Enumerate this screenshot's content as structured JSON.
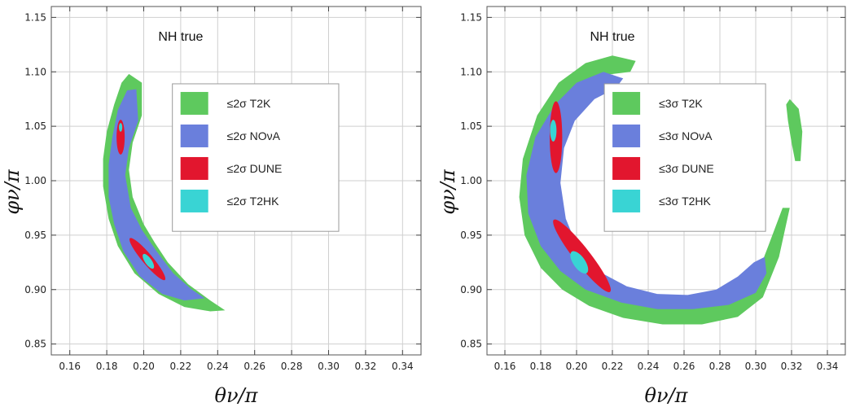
{
  "chart_data": [
    {
      "type": "area",
      "annotation": "NH true",
      "xlabel": "θν/π",
      "ylabel": "φν/π",
      "xlim": [
        0.15,
        0.35
      ],
      "ylim": [
        0.84,
        1.16
      ],
      "xticks": [
        "0.16",
        "0.18",
        "0.20",
        "0.22",
        "0.24",
        "0.26",
        "0.28",
        "0.30",
        "0.32",
        "0.34"
      ],
      "yticks": [
        "0.85",
        "0.90",
        "0.95",
        "1.00",
        "1.05",
        "1.10",
        "1.15"
      ],
      "grid": true,
      "legend_position": "upper-right",
      "series": [
        {
          "name": "≤2σ T2K",
          "color": "#5ec95e",
          "regions": [
            [
              [
                0.192,
                1.098
              ],
              [
                0.199,
                1.09
              ],
              [
                0.199,
                1.06
              ],
              [
                0.194,
                1.035
              ],
              [
                0.192,
                1.01
              ],
              [
                0.194,
                0.985
              ],
              [
                0.2,
                0.96
              ],
              [
                0.206,
                0.943
              ],
              [
                0.213,
                0.925
              ],
              [
                0.224,
                0.905
              ],
              [
                0.236,
                0.89
              ],
              [
                0.244,
                0.881
              ],
              [
                0.236,
                0.88
              ],
              [
                0.222,
                0.884
              ],
              [
                0.208,
                0.896
              ],
              [
                0.195,
                0.915
              ],
              [
                0.186,
                0.94
              ],
              [
                0.181,
                0.965
              ],
              [
                0.178,
                0.995
              ],
              [
                0.178,
                1.02
              ],
              [
                0.18,
                1.045
              ],
              [
                0.184,
                1.07
              ],
              [
                0.188,
                1.09
              ]
            ]
          ]
        },
        {
          "name": "≤2σ NOνA",
          "color": "#6a7fdc",
          "regions": [
            [
              [
                0.191,
                1.083
              ],
              [
                0.196,
                1.084
              ],
              [
                0.197,
                1.055
              ],
              [
                0.192,
                1.03
              ],
              [
                0.19,
                1.005
              ],
              [
                0.193,
                0.975
              ],
              [
                0.199,
                0.955
              ],
              [
                0.207,
                0.935
              ],
              [
                0.216,
                0.915
              ],
              [
                0.226,
                0.9
              ],
              [
                0.233,
                0.892
              ],
              [
                0.222,
                0.89
              ],
              [
                0.21,
                0.896
              ],
              [
                0.198,
                0.912
              ],
              [
                0.189,
                0.935
              ],
              [
                0.184,
                0.96
              ],
              [
                0.181,
                0.985
              ],
              [
                0.181,
                1.015
              ],
              [
                0.183,
                1.04
              ],
              [
                0.186,
                1.065
              ]
            ]
          ]
        },
        {
          "name": "≤2σ DUNE",
          "color": "#e2162e",
          "ellipses": [
            {
              "cx": 0.1875,
              "cy": 1.04,
              "rx": 0.0022,
              "ry": 0.016,
              "rot": 0
            },
            {
              "cx": 0.202,
              "cy": 0.928,
              "rx": 0.0028,
              "ry": 0.025,
              "rot": -40
            }
          ]
        },
        {
          "name": "≤2σ T2HK",
          "color": "#39d4d4",
          "ellipses": [
            {
              "cx": 0.1875,
              "cy": 1.049,
              "rx": 0.0009,
              "ry": 0.004,
              "rot": 0
            },
            {
              "cx": 0.2025,
              "cy": 0.926,
              "rx": 0.0018,
              "ry": 0.008,
              "rot": -35
            }
          ]
        }
      ]
    },
    {
      "type": "area",
      "annotation": "NH true",
      "xlabel": "θν/π",
      "ylabel": "φν/π",
      "xlim": [
        0.15,
        0.35
      ],
      "ylim": [
        0.84,
        1.16
      ],
      "xticks": [
        "0.16",
        "0.18",
        "0.20",
        "0.22",
        "0.24",
        "0.26",
        "0.28",
        "0.30",
        "0.32",
        "0.34"
      ],
      "yticks": [
        "0.85",
        "0.90",
        "0.95",
        "1.00",
        "1.05",
        "1.10",
        "1.15"
      ],
      "grid": true,
      "legend_position": "upper-right",
      "series": [
        {
          "name": "≤3σ T2K",
          "color": "#5ec95e",
          "regions": [
            [
              [
                0.233,
                1.11
              ],
              [
                0.22,
                1.115
              ],
              [
                0.205,
                1.108
              ],
              [
                0.19,
                1.09
              ],
              [
                0.178,
                1.06
              ],
              [
                0.17,
                1.02
              ],
              [
                0.168,
                0.985
              ],
              [
                0.171,
                0.95
              ],
              [
                0.18,
                0.92
              ],
              [
                0.192,
                0.9
              ],
              [
                0.207,
                0.885
              ],
              [
                0.226,
                0.874
              ],
              [
                0.248,
                0.868
              ],
              [
                0.27,
                0.868
              ],
              [
                0.29,
                0.875
              ],
              [
                0.304,
                0.893
              ],
              [
                0.313,
                0.93
              ],
              [
                0.319,
                0.975
              ],
              [
                0.315,
                0.975
              ],
              [
                0.307,
                0.94
              ],
              [
                0.3,
                0.91
              ],
              [
                0.292,
                0.895
              ],
              [
                0.28,
                0.89
              ],
              [
                0.265,
                0.893
              ],
              [
                0.25,
                0.895
              ],
              [
                0.235,
                0.897
              ],
              [
                0.222,
                0.902
              ],
              [
                0.208,
                0.916
              ],
              [
                0.198,
                0.935
              ],
              [
                0.19,
                0.96
              ],
              [
                0.186,
                0.995
              ],
              [
                0.186,
                1.03
              ],
              [
                0.19,
                1.06
              ],
              [
                0.2,
                1.085
              ],
              [
                0.215,
                1.097
              ],
              [
                0.23,
                1.1
              ]
            ],
            [
              [
                0.319,
                1.075
              ],
              [
                0.324,
                1.066
              ],
              [
                0.326,
                1.045
              ],
              [
                0.325,
                1.018
              ],
              [
                0.322,
                1.018
              ],
              [
                0.32,
                1.035
              ],
              [
                0.318,
                1.055
              ],
              [
                0.317,
                1.07
              ]
            ]
          ]
        },
        {
          "name": "≤3σ NOνA",
          "color": "#6a7fdc",
          "regions": [
            [
              [
                0.215,
                1.1
              ],
              [
                0.2,
                1.09
              ],
              [
                0.188,
                1.07
              ],
              [
                0.177,
                1.04
              ],
              [
                0.172,
                1.005
              ],
              [
                0.173,
                0.97
              ],
              [
                0.18,
                0.94
              ],
              [
                0.191,
                0.917
              ],
              [
                0.205,
                0.9
              ],
              [
                0.225,
                0.888
              ],
              [
                0.245,
                0.882
              ],
              [
                0.265,
                0.882
              ],
              [
                0.285,
                0.886
              ],
              [
                0.3,
                0.897
              ],
              [
                0.306,
                0.915
              ],
              [
                0.305,
                0.93
              ],
              [
                0.299,
                0.925
              ],
              [
                0.29,
                0.912
              ],
              [
                0.278,
                0.9
              ],
              [
                0.262,
                0.895
              ],
              [
                0.245,
                0.896
              ],
              [
                0.228,
                0.903
              ],
              [
                0.212,
                0.917
              ],
              [
                0.201,
                0.937
              ],
              [
                0.194,
                0.965
              ],
              [
                0.191,
                0.998
              ],
              [
                0.193,
                1.03
              ],
              [
                0.199,
                1.055
              ],
              [
                0.21,
                1.075
              ],
              [
                0.222,
                1.085
              ],
              [
                0.226,
                1.094
              ]
            ]
          ]
        },
        {
          "name": "≤3σ DUNE",
          "color": "#e2162e",
          "ellipses": [
            {
              "cx": 0.1885,
              "cy": 1.04,
              "rx": 0.0035,
              "ry": 0.033,
              "rot": 0
            },
            {
              "cx": 0.203,
              "cy": 0.931,
              "rx": 0.0045,
              "ry": 0.042,
              "rot": -38
            }
          ]
        },
        {
          "name": "≤3σ T2HK",
          "color": "#39d4d4",
          "ellipses": [
            {
              "cx": 0.187,
              "cy": 1.046,
              "rx": 0.0018,
              "ry": 0.01,
              "rot": 0
            },
            {
              "cx": 0.2015,
              "cy": 0.925,
              "rx": 0.0033,
              "ry": 0.012,
              "rot": -35
            }
          ]
        }
      ]
    }
  ]
}
